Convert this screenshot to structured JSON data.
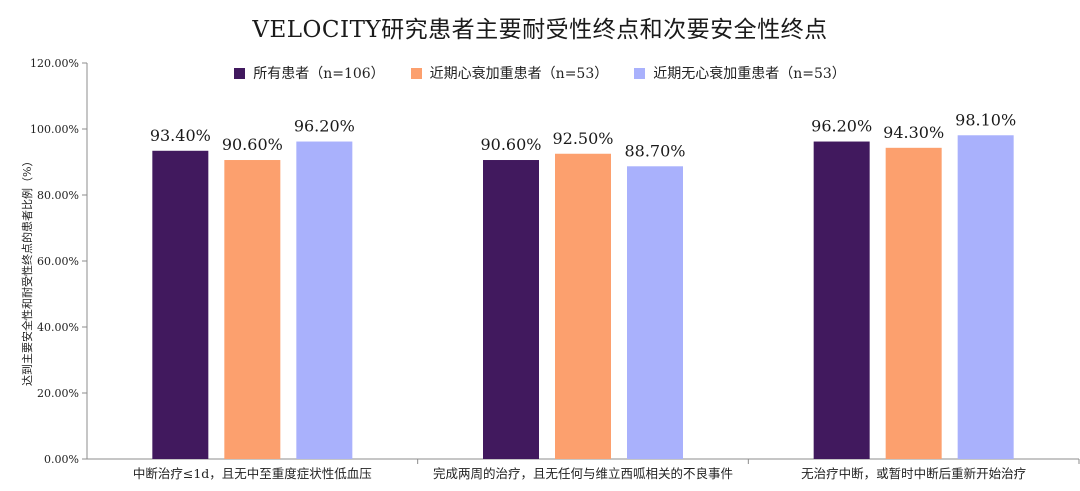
{
  "chart_data": {
    "type": "bar",
    "title": "VELOCITY研究患者主要耐受性终点和次要安全性终点",
    "ylabel": "达到主要安全性和耐受性终点的患者比例（%）",
    "xlabel": "",
    "ylim": [
      0,
      120
    ],
    "ytick_labels": [
      "0.00%",
      "20.00%",
      "40.00%",
      "60.00%",
      "80.00%",
      "100.00%",
      "120.00%"
    ],
    "ytick_values": [
      0,
      20,
      40,
      60,
      80,
      100,
      120
    ],
    "grid": false,
    "legend_position": "top-center",
    "categories": [
      "中断治疗≤1d，且无中至重度症状性低血压",
      "完成两周的治疗，且无任何与维立西呱相关的不良事件",
      "无治疗中断，或暂时中断后重新开始治疗"
    ],
    "series": [
      {
        "name": "所有患者（n=106）",
        "color": "#41195e",
        "values": [
          93.4,
          90.6,
          96.2
        ],
        "labels": [
          "93.40%",
          "90.60%",
          "96.20%"
        ]
      },
      {
        "name": "近期心衰加重患者（n=53）",
        "color": "#fca06e",
        "values": [
          90.6,
          92.5,
          94.3
        ],
        "labels": [
          "90.60%",
          "92.50%",
          "94.30%"
        ]
      },
      {
        "name": "近期无心衰加重患者（n=53）",
        "color": "#a9b1fc",
        "values": [
          96.2,
          88.7,
          98.1
        ],
        "labels": [
          "96.20%",
          "88.70%",
          "98.10%"
        ]
      }
    ]
  }
}
